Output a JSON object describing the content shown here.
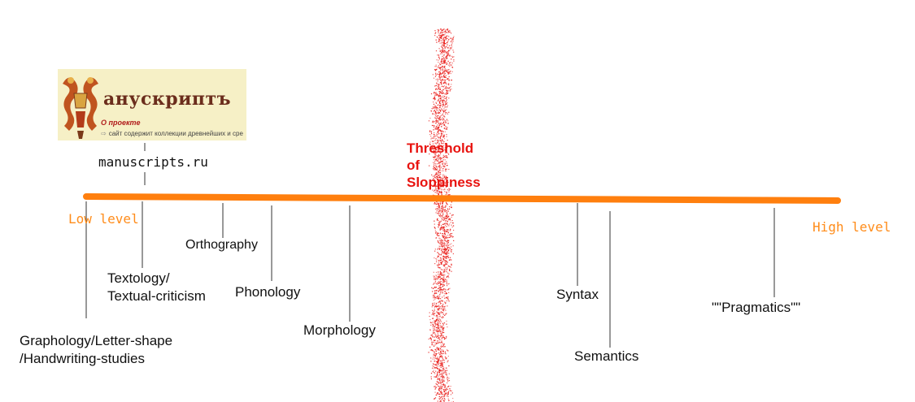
{
  "logo": {
    "title": "анускриптъ",
    "about": "О проекте",
    "tagline": "сайт содержит коллекции древнейших и сре"
  },
  "site_label": "manuscripts.ru",
  "axis": {
    "low_label": "Low level",
    "high_label": "High level",
    "threshold_lines": [
      "Threshold",
      "of",
      "Sloppiness"
    ]
  },
  "levels": {
    "graphology": [
      "Graphology/Letter-shape",
      "/Handwriting-studies"
    ],
    "textology": [
      "Textology/",
      "Textual-criticism"
    ],
    "orthography": "Orthography",
    "phonology": "Phonology",
    "morphology": "Morphology",
    "syntax": "Syntax",
    "semantics": "Semantics",
    "pragmatics": "\"\"Pragmatics\"\""
  },
  "colors": {
    "axis": "#ff7f0e",
    "threshold": "#e8130f",
    "level_labels": "#ff8c1a"
  }
}
